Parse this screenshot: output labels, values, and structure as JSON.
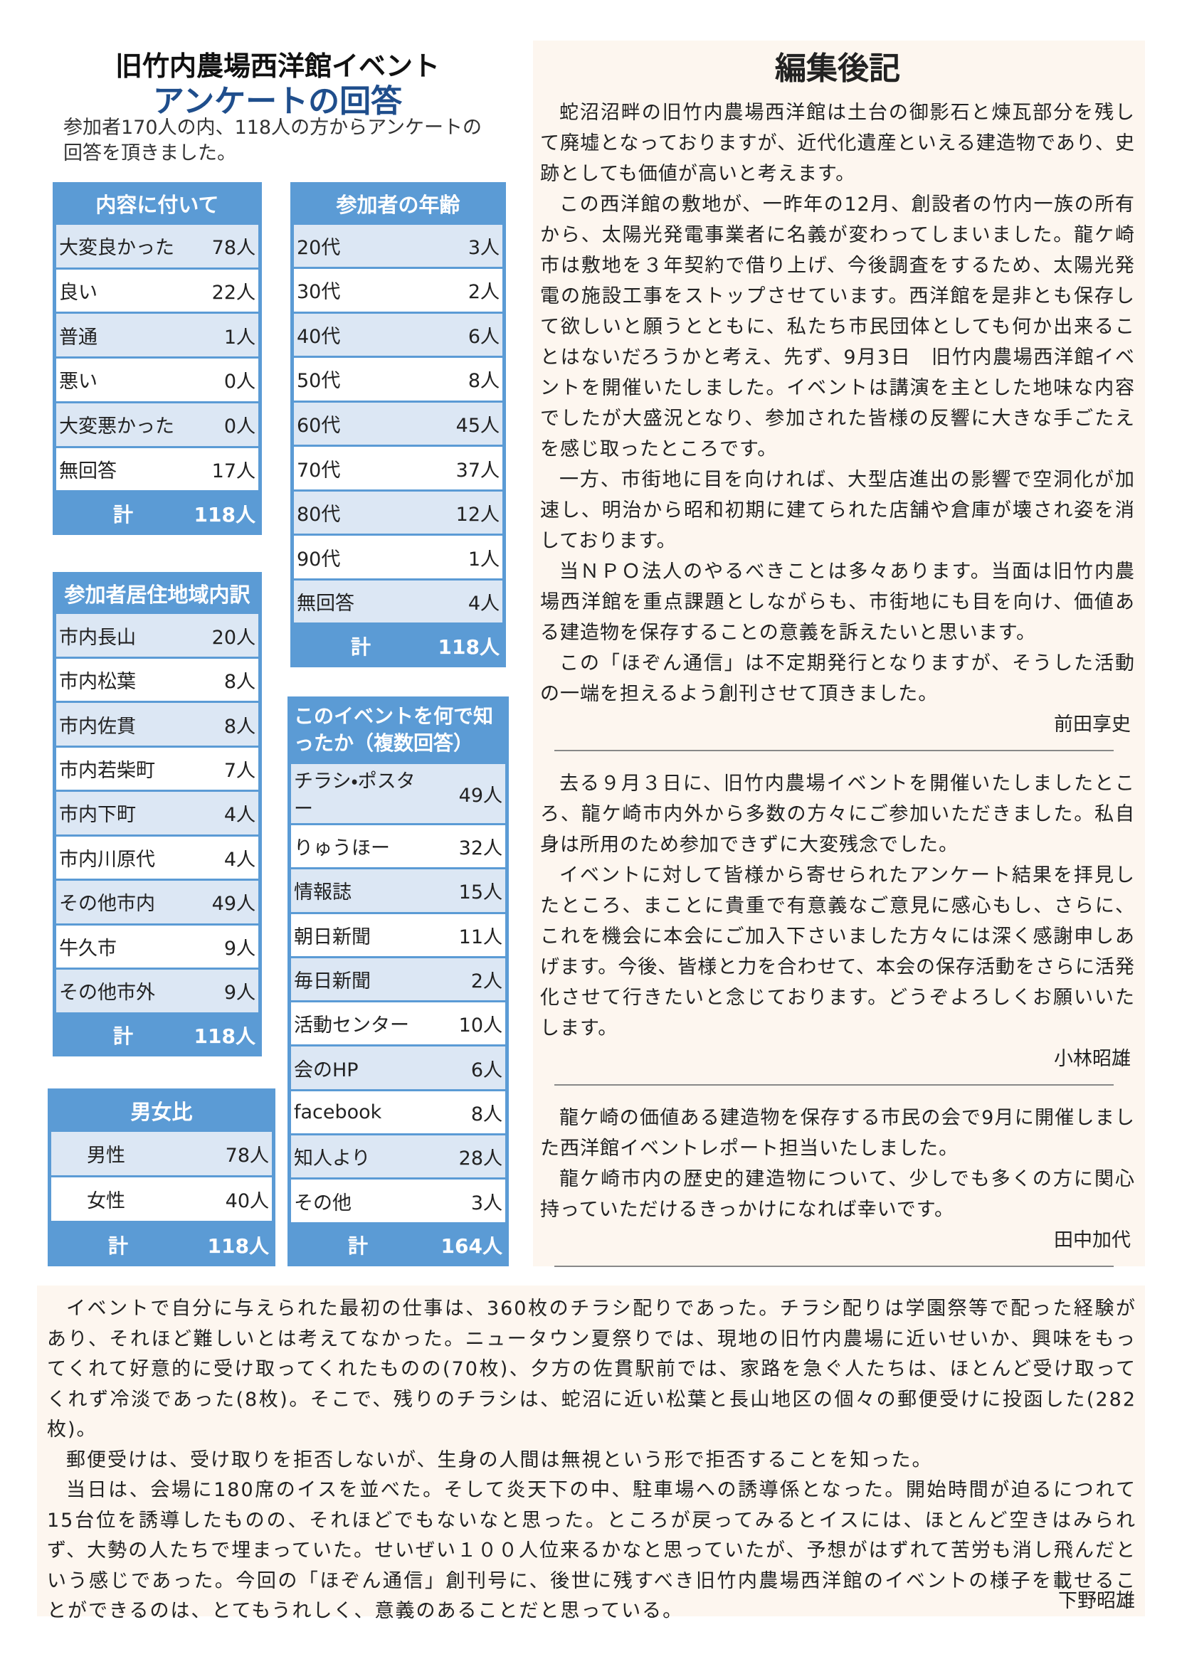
{
  "header": {
    "title": "旧竹内農場西洋館イベント",
    "subtitle": "アンケートの回答",
    "intro": "参加者170人の内、118人の方からアンケートの回答を頂きました。"
  },
  "tables": [
    {
      "title": "内容に付いて",
      "rows": [
        [
          "大変良かった",
          "78人"
        ],
        [
          "良い",
          "22人"
        ],
        [
          "普通",
          "1人"
        ],
        [
          "悪い",
          "0人"
        ],
        [
          "大変悪かった",
          "0人"
        ],
        [
          "無回答",
          "17人"
        ]
      ],
      "total": [
        "計",
        "118人"
      ]
    },
    {
      "title": "参加者の年齢",
      "rows": [
        [
          "20代",
          "3人"
        ],
        [
          "30代",
          "2人"
        ],
        [
          "40代",
          "6人"
        ],
        [
          "50代",
          "8人"
        ],
        [
          "60代",
          "45人"
        ],
        [
          "70代",
          "37人"
        ],
        [
          "80代",
          "12人"
        ],
        [
          "90代",
          "1人"
        ],
        [
          "無回答",
          "4人"
        ]
      ],
      "total": [
        "計",
        "118人"
      ]
    },
    {
      "title": "参加者居住地域内訳",
      "rows": [
        [
          "市内長山",
          "20人"
        ],
        [
          "市内松葉",
          "8人"
        ],
        [
          "市内佐貫",
          "8人"
        ],
        [
          "市内若柴町",
          "7人"
        ],
        [
          "市内下町",
          "4人"
        ],
        [
          "市内川原代",
          "4人"
        ],
        [
          "その他市内",
          "49人"
        ],
        [
          "牛久市",
          "9人"
        ],
        [
          "その他市外",
          "9人"
        ]
      ],
      "total": [
        "計",
        "118人"
      ]
    },
    {
      "title": "男女比",
      "rows": [
        [
          "男性",
          "78人"
        ],
        [
          "女性",
          "40人"
        ]
      ],
      "total": [
        "計",
        "118人"
      ]
    },
    {
      "title": "このイベントを何で知ったか（複数回答）",
      "rows": [
        [
          "チラシ・ポスター",
          "49人"
        ],
        [
          "りゅうほー",
          "32人"
        ],
        [
          "情報誌",
          "15人"
        ],
        [
          "朝日新聞",
          "11人"
        ],
        [
          "毎日新聞",
          "2人"
        ],
        [
          "活動センター",
          "10人"
        ],
        [
          "会のHP",
          "6人"
        ],
        [
          "facebook",
          "8人"
        ],
        [
          "知人より",
          "28人"
        ],
        [
          "その他",
          "3人"
        ]
      ],
      "total": [
        "計",
        "164人"
      ]
    }
  ],
  "editorial": {
    "title": "編集後記",
    "sections": [
      {
        "paragraphs": [
          "蛇沼沼畔の旧竹内農場西洋館は土台の御影石と煉瓦部分を残して廃墟となっておりますが、近代化遺産といえる建造物であり、史跡としても価値が高いと考えます。",
          "この西洋館の敷地が、一昨年の12月、創設者の竹内一族の所有から、太陽光発電事業者に名義が変わってしまいました。龍ケ崎市は敷地を３年契約で借り上げ、今後調査をするため、太陽光発電の施設工事をストップさせています。西洋館を是非とも保存して欲しいと願うとともに、私たち市民団体としても何か出来ることはないだろうかと考え、先ず、9月3日　旧竹内農場西洋館イベントを開催いたしました。イベントは講演を主とした地味な内容でしたが大盛況となり、参加された皆様の反響に大きな手ごたえを感じ取ったところです。",
          "一方、市街地に目を向ければ、大型店進出の影響で空洞化が加速し、明治から昭和初期に建てられた店舗や倉庫が壊され姿を消しております。",
          "当ＮＰＯ法人のやるべきことは多々あります。当面は旧竹内農場西洋館を重点課題としながらも、市街地にも目を向け、価値ある建造物を保存することの意義を訴えたいと思います。",
          "この「ほぞん通信」は不定期発行となりますが、そうした活動の一端を担えるよう創刊させて頂きました。"
        ],
        "signature": "前田享史"
      },
      {
        "paragraphs": [
          "去る９月３日に、旧竹内農場イベントを開催いたしましたところ、龍ケ崎市内外から多数の方々にご参加いただきました。私自身は所用のため参加できずに大変残念でした。",
          "イベントに対して皆様から寄せられたアンケート結果を拝見したところ、まことに貴重で有意義なご意見に感心もし、さらに、これを機会に本会にご加入下さいました方々には深く感謝申しあげます。今後、皆様と力を合わせて、本会の保存活動をさらに活発化させて行きたいと念じております。どうぞよろしくお願いいたします。"
        ],
        "signature": "小林昭雄"
      },
      {
        "paragraphs": [
          "龍ケ崎の価値ある建造物を保存する市民の会で9月に開催しました西洋館イベントレポート担当いたしました。",
          "龍ケ崎市内の歴史的建造物について、少しでも多くの方に関心持っていただけるきっかけになれば幸いです。"
        ],
        "signature": "田中加代"
      }
    ]
  },
  "report": {
    "paragraphs": [
      "イベントで自分に与えられた最初の仕事は、360枚のチラシ配りであった。チラシ配りは学園祭等で配った経験があり、それほど難しいとは考えてなかった。ニュータウン夏祭りでは、現地の旧竹内農場に近いせいか、興味をもってくれて好意的に受け取ってくれたものの(70枚)、夕方の佐貫駅前では、家路を急ぐ人たちは、ほとんど受け取ってくれず冷淡であった(8枚)。そこで、残りのチラシは、蛇沼に近い松葉と長山地区の個々の郵便受けに投函した(282枚)。",
      "郵便受けは、受け取りを拒否しないが、生身の人間は無視という形で拒否することを知った。",
      "当日は、会場に180席のイスを並べた。そして炎天下の中、駐車場への誘導係となった。開始時間が迫るにつれて15台位を誘導したものの、それほどでもないなと思った。ところが戻ってみるとイスには、ほとんど空きはみられず、大勢の人たちで埋まっていた。せいぜい１００人位来るかなと思っていたが、予想がはずれて苦労も消し飛んだという感じであった。今回の「ほぞん通信」創刊号に、後世に残すべき旧竹内農場西洋館のイベントの様子を載せることができるのは、とてもうれしく、意義のあることだと思っている。"
    ],
    "signature": "下野昭雄"
  }
}
